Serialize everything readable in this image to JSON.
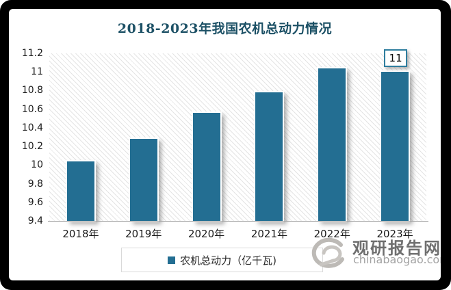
{
  "chart_data": {
    "type": "bar",
    "title": "2018-2023年我国农机总动力情况",
    "categories": [
      "2018年",
      "2019年",
      "2020年",
      "2021年",
      "2022年",
      "2023年"
    ],
    "values": [
      10.04,
      10.28,
      10.56,
      10.78,
      11.04,
      11
    ],
    "data_labels": [
      "",
      "",
      "",
      "",
      "",
      "11"
    ],
    "ylim": [
      9.4,
      11.2
    ],
    "ytick_labels": [
      "9.4",
      "9.6",
      "9.8",
      "10",
      "10.2",
      "10.4",
      "10.6",
      "10.8",
      "11",
      "11.2"
    ],
    "legend": [
      "农机总动力（亿千瓦)"
    ],
    "legend_position": "bottom",
    "grid": false,
    "plot_background": "diagonal-hatch"
  },
  "colors": {
    "bar": "#236e92",
    "title": "#1d5166",
    "axis_line": "#a6a6a6",
    "data_label_border": "#2e7d9e",
    "hatch_line": "#e4e4e4",
    "legend_border": "#d9d9d9",
    "frame": "#000000",
    "watermark_name": "#6f6f6f",
    "watermark_domain": "#a3a3a3"
  },
  "watermark": {
    "logo": "swirl-icon",
    "name": "观研报告网",
    "domain": "chinabaogao.com"
  }
}
